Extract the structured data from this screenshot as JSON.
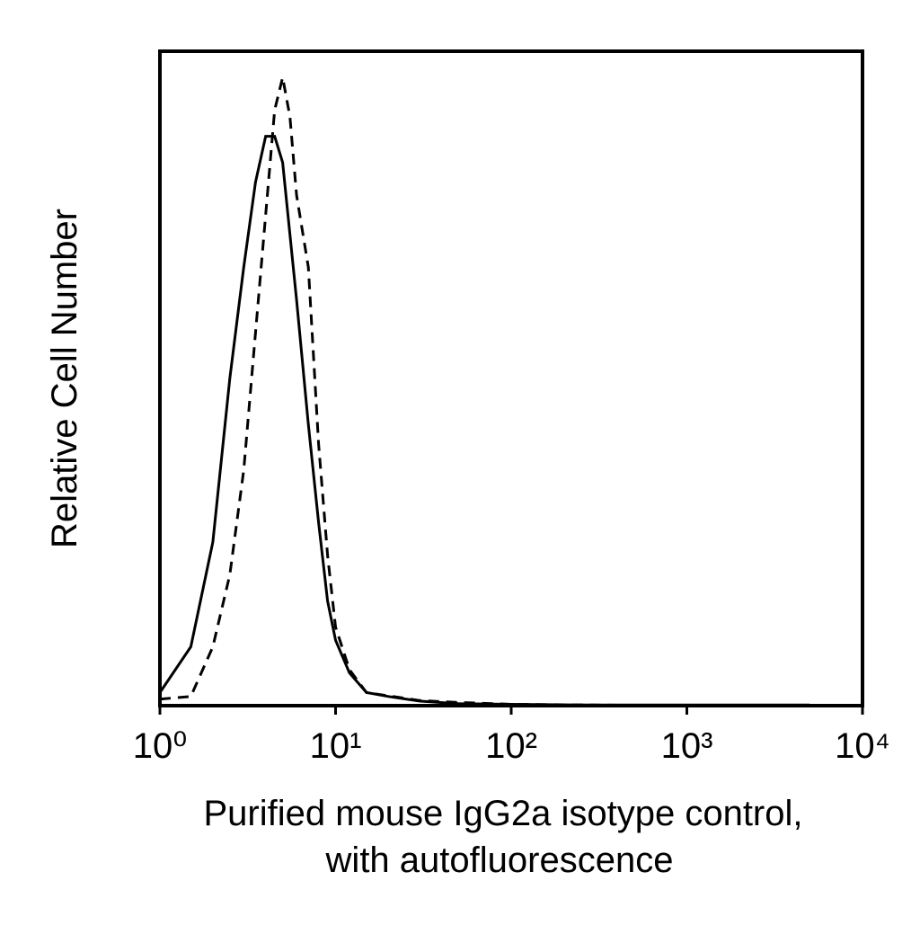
{
  "chart_data": {
    "type": "line",
    "x_label_lines": [
      "Purified mouse IgG2a isotype control,",
      "with autofluorescence"
    ],
    "y_label": "Relative Cell Number",
    "x_scale": "log",
    "xlim": [
      1,
      10000
    ],
    "xticks": [
      {
        "value": 1,
        "label": "10⁰"
      },
      {
        "value": 10,
        "label": "10¹"
      },
      {
        "value": 100,
        "label": "10²"
      },
      {
        "value": 1000,
        "label": "10³"
      },
      {
        "value": 10000,
        "label": "10⁴"
      }
    ],
    "ylim": [
      0,
      100
    ],
    "x": [
      1,
      1.5,
      2,
      2.5,
      3,
      3.5,
      4,
      4.5,
      5,
      5.5,
      6,
      7,
      8,
      9,
      10,
      12,
      15,
      20,
      30,
      50,
      100,
      300,
      1000,
      5000
    ],
    "series": [
      {
        "color": "#000000",
        "dash": "solid",
        "values": [
          2,
          9,
          25,
          50,
          67,
          80,
          87,
          87,
          83,
          72,
          62,
          43,
          28,
          16,
          10,
          5,
          2,
          1.4,
          0.7,
          0.3,
          0.2,
          0.1,
          0.1,
          0.1
        ]
      },
      {
        "color": "#000000",
        "dash": "dashed",
        "values": [
          1,
          1.4,
          9,
          20,
          36,
          57,
          75,
          91,
          96,
          90,
          78,
          67,
          40,
          23,
          12,
          5.5,
          2,
          1.5,
          0.8,
          0.5,
          0.2,
          0.1,
          0,
          0
        ]
      }
    ]
  }
}
